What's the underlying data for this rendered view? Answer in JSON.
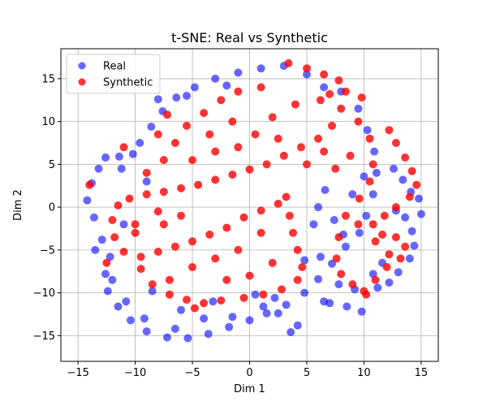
{
  "chart_data": {
    "type": "scatter",
    "title": "t-SNE: Real vs Synthetic",
    "xlabel": "Dim 1",
    "ylabel": "Dim 2",
    "xlim": [
      -16.5,
      16.5
    ],
    "ylim": [
      -18,
      18.5
    ],
    "xticks": [
      -15,
      -10,
      -5,
      0,
      5,
      10,
      15
    ],
    "yticks": [
      -15,
      -10,
      -5,
      0,
      5,
      10,
      15
    ],
    "grid": true,
    "legend_position": "top-left",
    "series": [
      {
        "name": "Real",
        "color": "#0000ff",
        "opacity": 0.6,
        "points": [
          [
            -13.8,
            2.8
          ],
          [
            -13.2,
            4.5
          ],
          [
            -12.6,
            5.8
          ],
          [
            -11.4,
            5.9
          ],
          [
            -10.2,
            6.2
          ],
          [
            -9.6,
            7.5
          ],
          [
            -8.6,
            9.4
          ],
          [
            -7.6,
            11.2
          ],
          [
            -6.4,
            12.8
          ],
          [
            -4.8,
            14.0
          ],
          [
            -3.0,
            15.0
          ],
          [
            -1.0,
            15.7
          ],
          [
            1.0,
            16.2
          ],
          [
            3.0,
            16.5
          ],
          [
            5.0,
            15.5
          ],
          [
            6.5,
            14.0
          ],
          [
            8.0,
            13.5
          ],
          [
            9.5,
            11.5
          ],
          [
            10.3,
            9.0
          ],
          [
            10.9,
            6.5
          ],
          [
            11.1,
            4.0
          ],
          [
            10.8,
            1.5
          ],
          [
            10.2,
            -1.0
          ],
          [
            9.6,
            -3.0
          ],
          [
            8.4,
            -4.6
          ],
          [
            7.2,
            -6.6
          ],
          [
            6.0,
            -8.4
          ],
          [
            4.8,
            -10.0
          ],
          [
            3.2,
            -11.4
          ],
          [
            1.5,
            -12.4
          ],
          [
            0.0,
            -13.2
          ],
          [
            -1.8,
            -14.0
          ],
          [
            -3.6,
            -14.8
          ],
          [
            -5.4,
            -15.3
          ],
          [
            -7.2,
            -15.2
          ],
          [
            -9.0,
            -14.5
          ],
          [
            -10.4,
            -13.2
          ],
          [
            -11.5,
            -11.6
          ],
          [
            -12.4,
            -9.8
          ],
          [
            -12.6,
            -7.8
          ],
          [
            -12.2,
            -5.8
          ],
          [
            -12.9,
            -3.8
          ],
          [
            -13.6,
            -1.2
          ],
          [
            -14.2,
            0.8
          ],
          [
            -13.5,
            -5.0
          ],
          [
            -12.0,
            -8.5
          ],
          [
            -10.8,
            -11.0
          ],
          [
            -9.2,
            -13.0
          ],
          [
            -6.5,
            -14.2
          ],
          [
            -4.0,
            -13.0
          ],
          [
            -1.5,
            -12.8
          ],
          [
            1.2,
            -11.6
          ],
          [
            2.5,
            -12.4
          ],
          [
            4.2,
            -13.8
          ],
          [
            3.6,
            -14.6
          ],
          [
            6.5,
            -11.0
          ],
          [
            8.5,
            -11.6
          ],
          [
            9.8,
            -12.2
          ],
          [
            7.0,
            -11.2
          ],
          [
            5.6,
            -2.0
          ],
          [
            6.0,
            0.0
          ],
          [
            6.6,
            2.0
          ],
          [
            7.4,
            -1.5
          ],
          [
            8.2,
            -3.2
          ],
          [
            12.8,
            -0.4
          ],
          [
            13.6,
            -1.2
          ],
          [
            14.2,
            -2.8
          ],
          [
            14.4,
            -4.5
          ],
          [
            14.0,
            -6.0
          ],
          [
            13.0,
            -7.6
          ],
          [
            12.2,
            -8.8
          ],
          [
            11.2,
            -9.4
          ],
          [
            12.6,
            4.5
          ],
          [
            13.4,
            3.2
          ],
          [
            14.1,
            1.8
          ],
          [
            14.8,
            1.0
          ],
          [
            15.0,
            -0.8
          ],
          [
            11.6,
            -6.5
          ],
          [
            10.8,
            -7.8
          ],
          [
            9.2,
            -9.6
          ],
          [
            7.8,
            -9.0
          ],
          [
            -8.0,
            12.6
          ],
          [
            -5.5,
            13.0
          ],
          [
            -2.0,
            14.2
          ],
          [
            -11.2,
            4.5
          ],
          [
            -9.0,
            3.0
          ],
          [
            -11.0,
            -2.0
          ],
          [
            -8.5,
            -9.8
          ],
          [
            -6.0,
            -12.0
          ],
          [
            -3.2,
            -11.0
          ],
          [
            0.5,
            -10.2
          ],
          [
            2.2,
            -10.6
          ],
          [
            4.8,
            -6.2
          ],
          [
            6.2,
            -5.8
          ],
          [
            9.0,
            1.5
          ],
          [
            10.0,
            3.6
          ]
        ]
      },
      {
        "name": "Synthetic",
        "color": "#ff0000",
        "opacity": 0.8,
        "points": [
          [
            3.4,
            16.8
          ],
          [
            5.0,
            16.2
          ],
          [
            6.5,
            15.5
          ],
          [
            7.8,
            14.8
          ],
          [
            8.4,
            13.5
          ],
          [
            8.0,
            11.5
          ],
          [
            7.2,
            9.5
          ],
          [
            6.0,
            8.0
          ],
          [
            4.5,
            7.0
          ],
          [
            3.0,
            6.0
          ],
          [
            1.5,
            5.0
          ],
          [
            0.0,
            4.4
          ],
          [
            -1.5,
            3.8
          ],
          [
            -3.0,
            3.2
          ],
          [
            -4.5,
            2.6
          ],
          [
            -6.0,
            2.2
          ],
          [
            -7.5,
            1.8
          ],
          [
            -9.0,
            1.5
          ],
          [
            -10.5,
            1.0
          ],
          [
            -11.5,
            0.2
          ],
          [
            -12.0,
            -1.5
          ],
          [
            -11.8,
            -3.5
          ],
          [
            -11.0,
            -5.2
          ],
          [
            -9.5,
            -5.8
          ],
          [
            -8.0,
            -5.2
          ],
          [
            -6.5,
            -4.6
          ],
          [
            -5.0,
            -4.0
          ],
          [
            -3.5,
            -3.2
          ],
          [
            -2.0,
            -2.4
          ],
          [
            -0.5,
            -1.2
          ],
          [
            1.0,
            -0.4
          ],
          [
            2.5,
            0.4
          ],
          [
            3.2,
            1.2
          ],
          [
            3.5,
            -1.0
          ],
          [
            3.8,
            -3.0
          ],
          [
            4.2,
            -5.0
          ],
          [
            4.6,
            -7.0
          ],
          [
            4.2,
            -8.5
          ],
          [
            2.8,
            -9.6
          ],
          [
            1.2,
            -10.2
          ],
          [
            -0.5,
            -10.6
          ],
          [
            -2.5,
            -10.9
          ],
          [
            -4.0,
            -11.2
          ],
          [
            -5.5,
            -10.8
          ],
          [
            -7.0,
            -10.2
          ],
          [
            -8.5,
            -9.0
          ],
          [
            -9.5,
            -7.2
          ],
          [
            -7.0,
            -8.5
          ],
          [
            -9.0,
            4.0
          ],
          [
            -7.5,
            5.5
          ],
          [
            -6.5,
            7.5
          ],
          [
            -5.5,
            9.5
          ],
          [
            -4.0,
            11.0
          ],
          [
            -2.5,
            12.5
          ],
          [
            -1.0,
            13.5
          ],
          [
            1.0,
            14.0
          ],
          [
            -8.0,
            8.5
          ],
          [
            -7.2,
            10.8
          ],
          [
            -3.5,
            8.5
          ],
          [
            -1.5,
            10.0
          ],
          [
            2.0,
            10.5
          ],
          [
            4.0,
            12.0
          ],
          [
            6.2,
            12.5
          ],
          [
            9.5,
            10.0
          ],
          [
            10.5,
            8.0
          ],
          [
            10.8,
            5.0
          ],
          [
            10.5,
            3.0
          ],
          [
            9.6,
            1.0
          ],
          [
            8.4,
            -1.0
          ],
          [
            7.8,
            -3.5
          ],
          [
            7.6,
            -6.0
          ],
          [
            8.0,
            -7.8
          ],
          [
            9.0,
            -9.0
          ],
          [
            10.0,
            -9.8
          ],
          [
            11.0,
            -8.5
          ],
          [
            12.0,
            -7.0
          ],
          [
            12.2,
            -5.5
          ],
          [
            11.0,
            -4.0
          ],
          [
            9.5,
            -2.0
          ],
          [
            12.2,
            9.0
          ],
          [
            12.8,
            7.5
          ],
          [
            13.6,
            5.8
          ],
          [
            14.2,
            4.2
          ],
          [
            14.6,
            2.6
          ],
          [
            14.0,
            1.2
          ],
          [
            12.8,
            0.0
          ],
          [
            11.8,
            -1.0
          ],
          [
            10.8,
            -2.0
          ],
          [
            11.6,
            -3.2
          ],
          [
            12.8,
            -3.5
          ],
          [
            13.6,
            -4.6
          ],
          [
            13.2,
            -6.0
          ],
          [
            5.0,
            5.0
          ],
          [
            6.5,
            6.5
          ],
          [
            7.5,
            4.5
          ],
          [
            8.8,
            6.0
          ],
          [
            -5.0,
            5.5
          ],
          [
            -3.0,
            6.5
          ],
          [
            -1.0,
            7.0
          ],
          [
            0.5,
            8.5
          ],
          [
            2.5,
            8.0
          ],
          [
            -6.0,
            -1.0
          ],
          [
            -3.0,
            -6.0
          ],
          [
            -1.0,
            -5.0
          ],
          [
            1.0,
            -3.0
          ],
          [
            2.0,
            -6.5
          ],
          [
            0.0,
            -8.0
          ],
          [
            -2.0,
            -8.5
          ],
          [
            -5.0,
            -7.0
          ],
          [
            -7.5,
            -2.0
          ],
          [
            -10.0,
            -3.0
          ],
          [
            -12.5,
            -6.5
          ],
          [
            -14.0,
            2.6
          ],
          [
            -11.0,
            7.0
          ],
          [
            -10.0,
            -2.0
          ],
          [
            -8.0,
            -0.5
          ],
          [
            -4.8,
            -11.8
          ],
          [
            10.2,
            -10.2
          ],
          [
            9.8,
            12.8
          ],
          [
            7.0,
            13.2
          ]
        ]
      }
    ]
  }
}
